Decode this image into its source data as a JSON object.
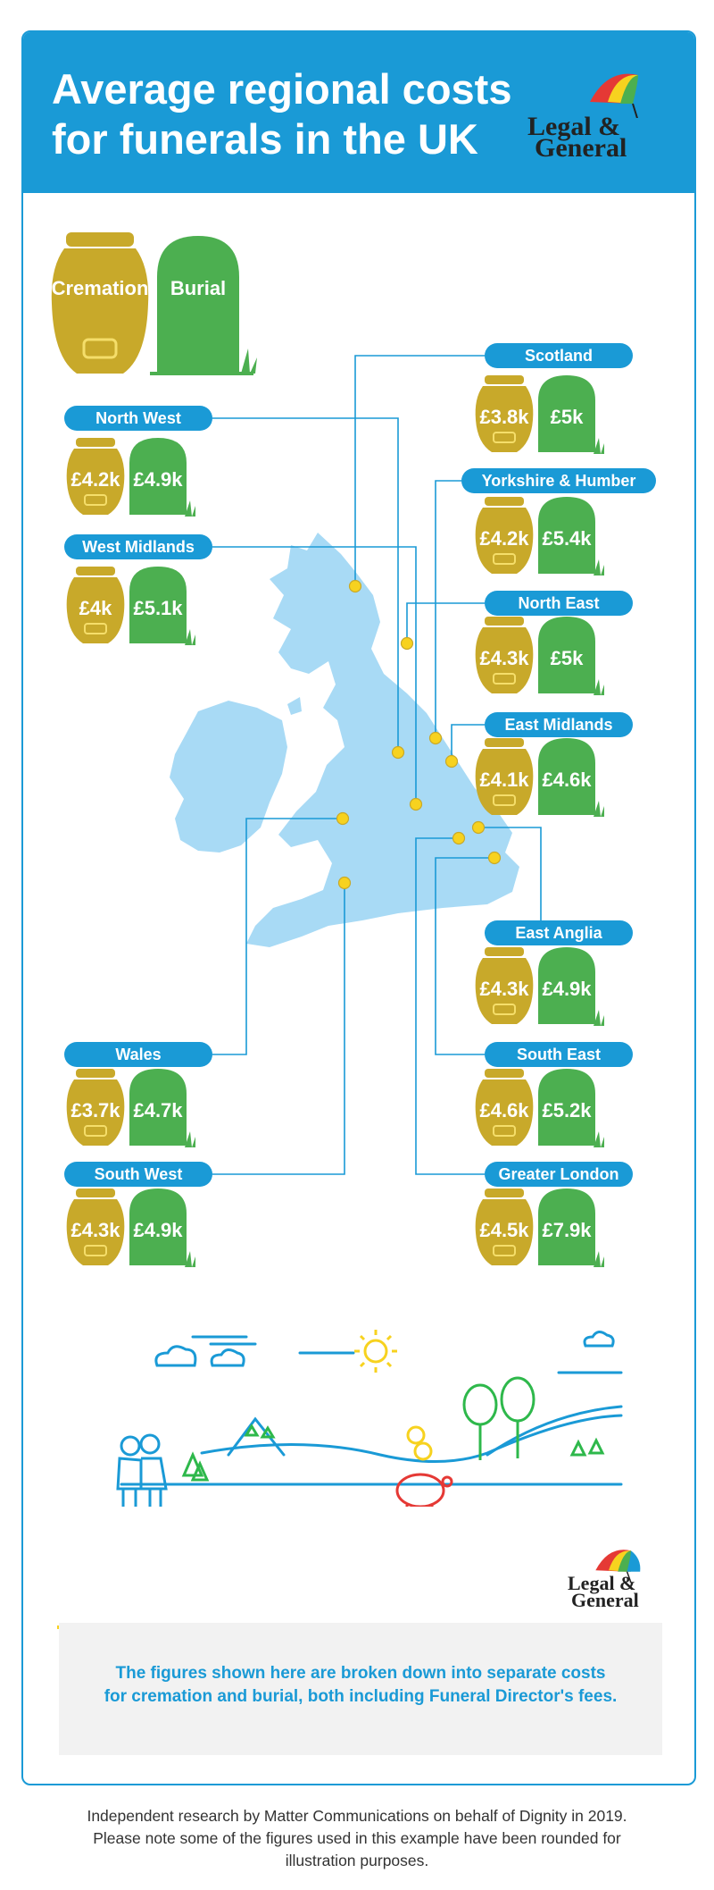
{
  "header": {
    "title_line1": "Average regional costs",
    "title_line2": "for funerals in the UK",
    "logo_line1": "Legal &",
    "logo_line2": "General"
  },
  "legend": {
    "cremation": "Cremation",
    "burial": "Burial"
  },
  "colors": {
    "brand_blue": "#1a9ad6",
    "urn_gold": "#c8a92a",
    "headstone_green": "#4caf50",
    "map_blue": "#a8daf5",
    "dot_yellow": "#f7d21f"
  },
  "regions": [
    {
      "name": "Scotland",
      "cremation": "£3.8k",
      "burial": "£5k"
    },
    {
      "name": "North West",
      "cremation": "£4.2k",
      "burial": "£4.9k"
    },
    {
      "name": "Yorkshire & Humber",
      "cremation": "£4.2k",
      "burial": "£5.4k"
    },
    {
      "name": "West Midlands",
      "cremation": "£4k",
      "burial": "£5.1k"
    },
    {
      "name": "North East",
      "cremation": "£4.3k",
      "burial": "£5k"
    },
    {
      "name": "East Midlands",
      "cremation": "£4.1k",
      "burial": "£4.6k"
    },
    {
      "name": "East Anglia",
      "cremation": "£4.3k",
      "burial": "£4.9k"
    },
    {
      "name": "Wales",
      "cremation": "£3.7k",
      "burial": "£4.7k"
    },
    {
      "name": "South East",
      "cremation": "£4.6k",
      "burial": "£5.2k"
    },
    {
      "name": "South West",
      "cremation": "£4.3k",
      "burial": "£4.9k"
    },
    {
      "name": "Greater London",
      "cremation": "£4.5k",
      "burial": "£7.9k"
    }
  ],
  "note": "The figures shown here are broken down into separate costs for cremation and burial, both including Funeral Director's fees.",
  "footer_line1": "Independent research by Matter Communications on behalf of Dignity in 2019.",
  "footer_line2": "Please note some of the figures used in this example have been rounded for",
  "footer_line3": "illustration purposes."
}
